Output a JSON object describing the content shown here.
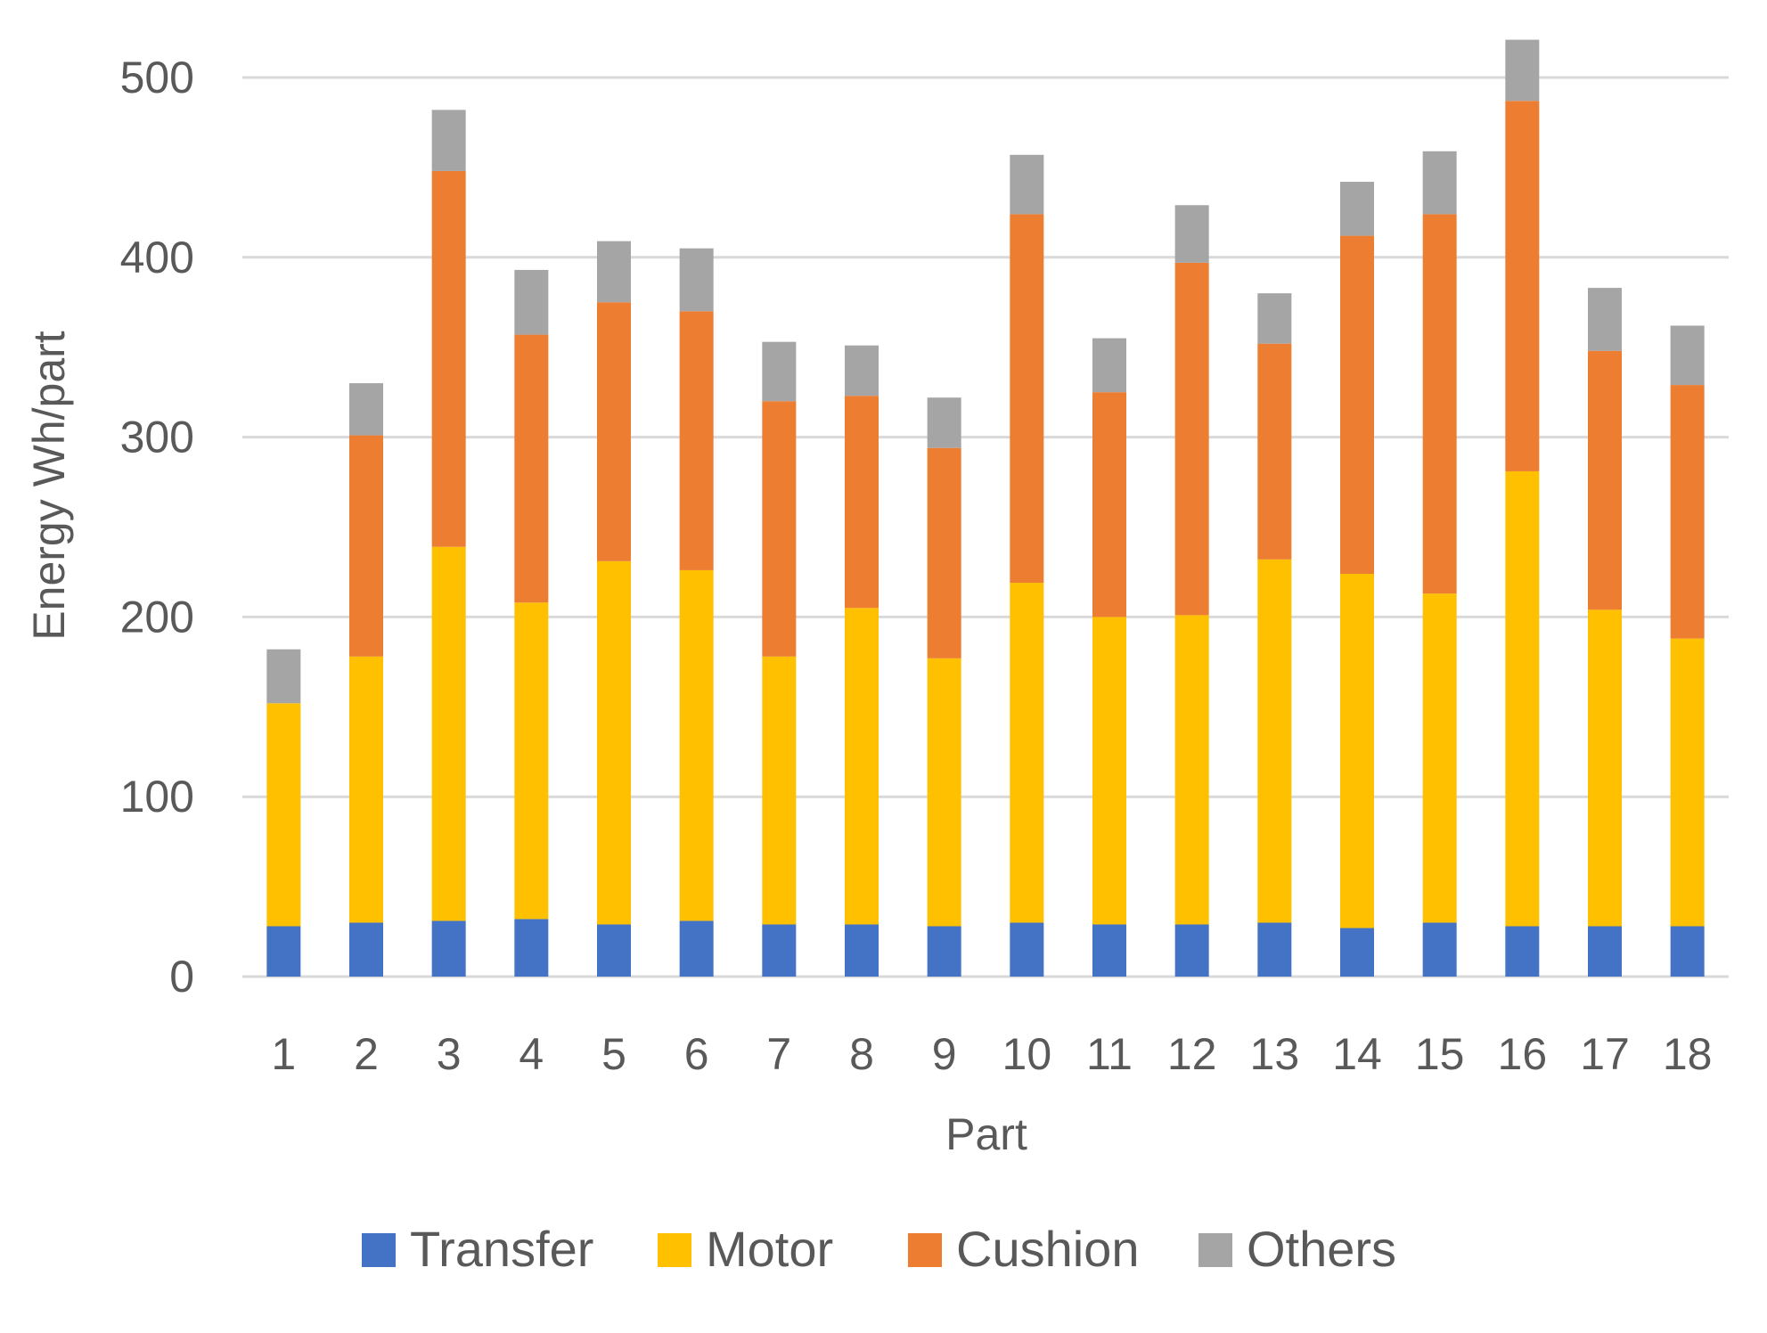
{
  "chart_data": {
    "type": "bar",
    "stacked": true,
    "title": "",
    "xlabel": "Part",
    "ylabel": "Energy Wh/part",
    "ylim": [
      0,
      520
    ],
    "yticks": [
      0,
      100,
      200,
      300,
      400,
      500
    ],
    "grid": true,
    "legend": "bottom",
    "categories": [
      "1",
      "2",
      "3",
      "4",
      "5",
      "6",
      "7",
      "8",
      "9",
      "10",
      "11",
      "12",
      "13",
      "14",
      "15",
      "16",
      "17",
      "18"
    ],
    "series": [
      {
        "name": "Transfer",
        "color": "#4472C4",
        "values": [
          28,
          30,
          31,
          32,
          29,
          31,
          29,
          29,
          28,
          30,
          29,
          29,
          30,
          27,
          30,
          28,
          28,
          28
        ]
      },
      {
        "name": "Motor",
        "color": "#FFC000",
        "values": [
          124,
          148,
          208,
          176,
          202,
          195,
          149,
          176,
          149,
          189,
          171,
          172,
          202,
          197,
          183,
          253,
          176,
          160
        ]
      },
      {
        "name": "Cushion",
        "color": "#ED7D31",
        "values": [
          0,
          123,
          209,
          149,
          144,
          144,
          142,
          118,
          117,
          205,
          125,
          196,
          120,
          188,
          211,
          206,
          144,
          141
        ]
      },
      {
        "name": "Others",
        "color": "#A5A5A5",
        "values": [
          30,
          29,
          34,
          36,
          34,
          35,
          33,
          28,
          28,
          33,
          30,
          32,
          28,
          30,
          35,
          34,
          35,
          33
        ]
      }
    ]
  }
}
